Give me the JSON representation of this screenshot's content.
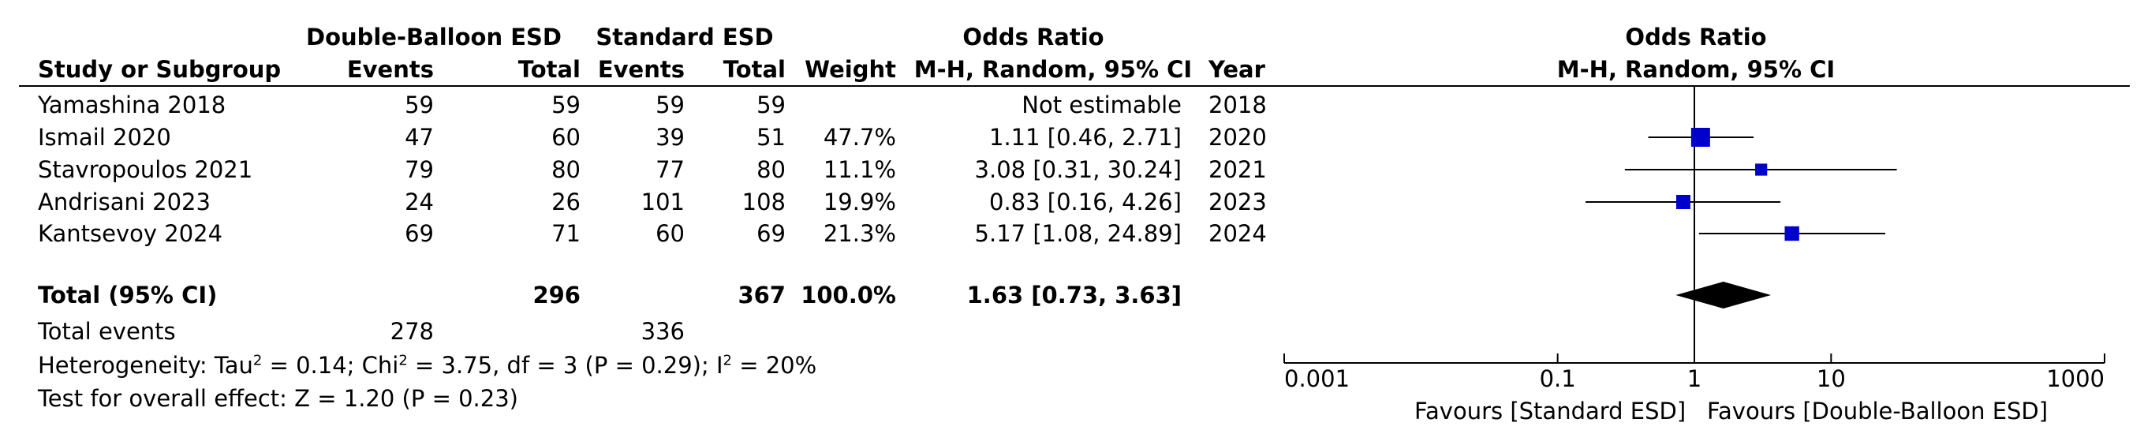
{
  "headers": {
    "group1": "Double-Balloon ESD",
    "group2": "Standard ESD",
    "or_title": "Odds Ratio",
    "study_col": "Study or Subgroup",
    "events": "Events",
    "total": "Total",
    "weight": "Weight",
    "method": "M-H, Random, 95% CI",
    "year": "Year",
    "plot_title": "Odds Ratio",
    "plot_method": "M-H, Random, 95% CI"
  },
  "studies": [
    {
      "name": "Yamashina 2018",
      "e1": "59",
      "n1": "59",
      "e2": "59",
      "n2": "59",
      "weight": "",
      "ci_text": "Not estimable",
      "year": "2018"
    },
    {
      "name": "Ismail 2020",
      "e1": "47",
      "n1": "60",
      "e2": "39",
      "n2": "51",
      "weight": "47.7%",
      "ci_text": "1.11 [0.46, 2.71]",
      "year": "2020"
    },
    {
      "name": "Stavropoulos 2021",
      "e1": "79",
      "n1": "80",
      "e2": "77",
      "n2": "80",
      "weight": "11.1%",
      "ci_text": "3.08 [0.31, 30.24]",
      "year": "2021"
    },
    {
      "name": "Andrisani 2023",
      "e1": "24",
      "n1": "26",
      "e2": "101",
      "n2": "108",
      "weight": "19.9%",
      "ci_text": "0.83 [0.16, 4.26]",
      "year": "2023"
    },
    {
      "name": "Kantsevoy 2024",
      "e1": "69",
      "n1": "71",
      "e2": "60",
      "n2": "69",
      "weight": "21.3%",
      "ci_text": "5.17 [1.08, 24.89]",
      "year": "2024"
    }
  ],
  "total": {
    "label": "Total (95% CI)",
    "n1": "296",
    "n2": "367",
    "weight": "100.0%",
    "ci_text": "1.63 [0.73, 3.63]"
  },
  "total_events": {
    "label": "Total events",
    "e1": "278",
    "e2": "336"
  },
  "heterogeneity": {
    "prefix": "Heterogeneity: Tau",
    "a": " = 0.14; Chi",
    "b": " = 3.75, df = 3 (P = 0.29); I",
    "c": " = 20%",
    "sup": "2"
  },
  "overall_effect": "Test for overall effect: Z = 1.20 (P = 0.23)",
  "axis": {
    "ticks": [
      "0.001",
      "0.1",
      "1",
      "10",
      "1000"
    ]
  },
  "favours": {
    "left": "Favours [Standard ESD]",
    "right": "Favours [Double-Balloon ESD]"
  },
  "colors": {
    "marker": "#0000cc",
    "line": "#000000"
  },
  "chart_data": {
    "type": "forest",
    "scale": "log",
    "xlim": [
      0.001,
      1000
    ],
    "ticks": [
      0.001,
      0.1,
      1,
      10,
      1000
    ],
    "null_line": 1,
    "studies": [
      {
        "name": "Yamashina 2018",
        "or": null,
        "lo": null,
        "hi": null,
        "weight": null
      },
      {
        "name": "Ismail 2020",
        "or": 1.11,
        "lo": 0.46,
        "hi": 2.71,
        "weight": 47.7
      },
      {
        "name": "Stavropoulos 2021",
        "or": 3.08,
        "lo": 0.31,
        "hi": 30.24,
        "weight": 11.1
      },
      {
        "name": "Andrisani 2023",
        "or": 0.83,
        "lo": 0.16,
        "hi": 4.26,
        "weight": 19.9
      },
      {
        "name": "Kantsevoy 2024",
        "or": 5.17,
        "lo": 1.08,
        "hi": 24.89,
        "weight": 21.3
      }
    ],
    "pooled": {
      "or": 1.63,
      "lo": 0.73,
      "hi": 3.63
    }
  }
}
